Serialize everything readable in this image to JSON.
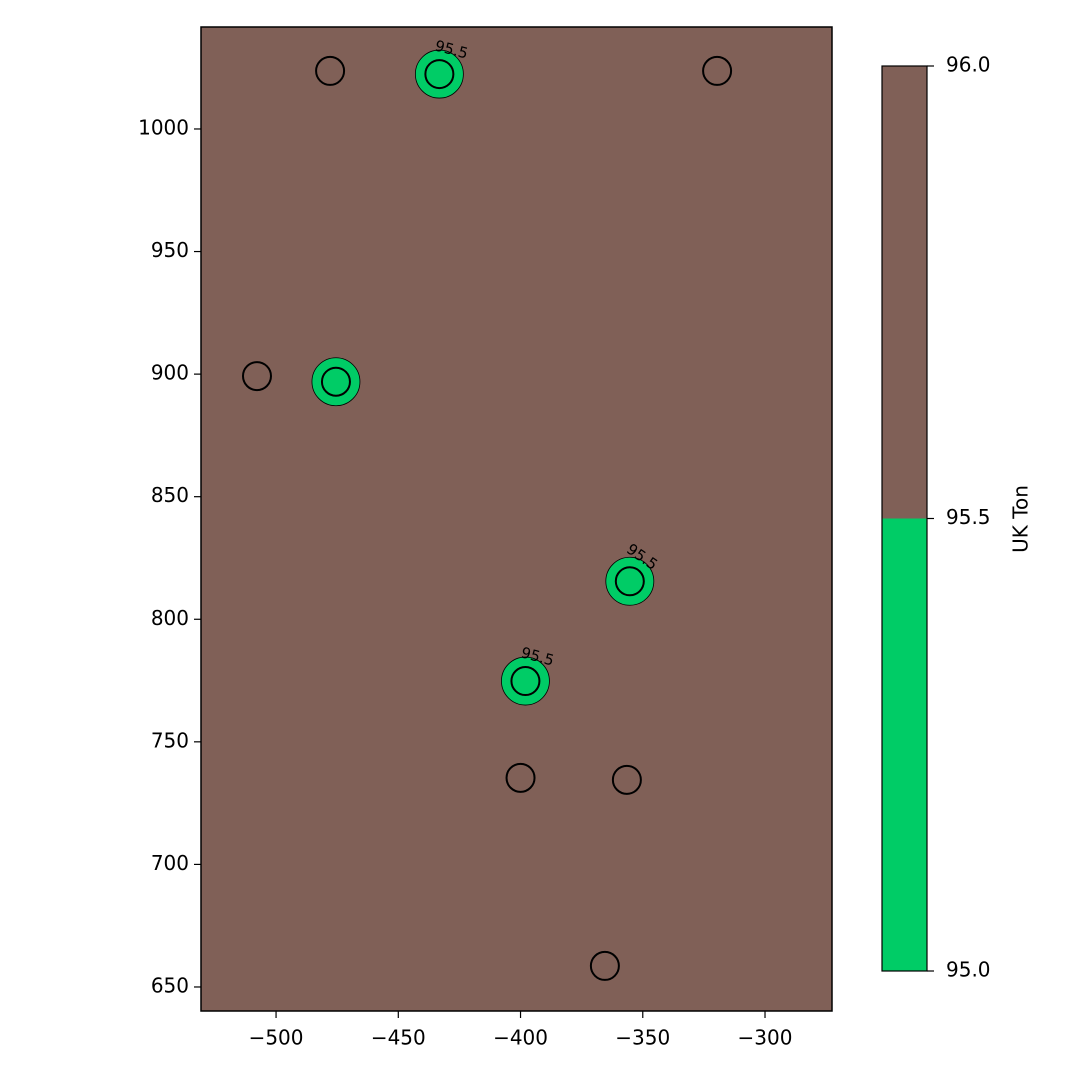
{
  "chart_data": {
    "type": "contour",
    "colorbar_label": "UK Ton",
    "x": [
      -477.9,
      -433.2,
      -319.6,
      -507.8,
      -475.5,
      -355.3,
      -398.0,
      -400.0,
      -356.5,
      -365.5
    ],
    "y": [
      1023.7,
      1022.4,
      1023.7,
      899.2,
      896.9,
      815.5,
      774.8,
      735.3,
      734.5,
      658.6
    ],
    "values": [
      96.0,
      95.0,
      96.0,
      96.0,
      95.0,
      95.0,
      95.0,
      96.0,
      96.0,
      96.0
    ],
    "levels": [
      95,
      95.5,
      96
    ],
    "colors": [
      "#00cc66",
      "#806057"
    ],
    "xlim": [
      -530.7,
      -272.6
    ],
    "ylim": [
      640.2,
      1041.6
    ],
    "xticks": [
      {
        "value": -500,
        "label": "−500"
      },
      {
        "value": -450,
        "label": "−450"
      },
      {
        "value": -400,
        "label": "−400"
      },
      {
        "value": -350,
        "label": "−350"
      },
      {
        "value": -300,
        "label": "−300"
      }
    ],
    "yticks": [
      650,
      700,
      750,
      800,
      850,
      900,
      950,
      1000
    ],
    "cbticks": [
      {
        "value": 95,
        "label": "95.0"
      },
      {
        "value": 95.5,
        "label": "95.5"
      },
      {
        "value": 96,
        "label": "96.0"
      }
    ]
  }
}
